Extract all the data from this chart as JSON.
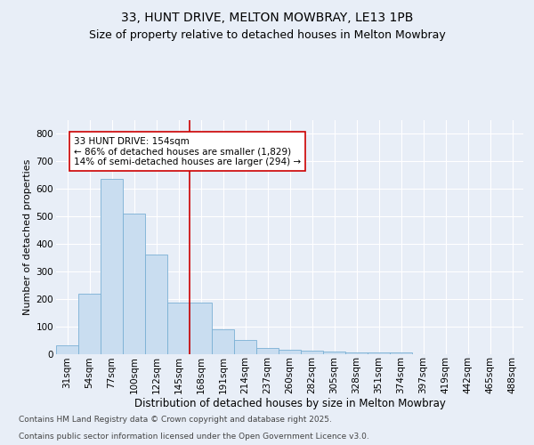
{
  "title1": "33, HUNT DRIVE, MELTON MOWBRAY, LE13 1PB",
  "title2": "Size of property relative to detached houses in Melton Mowbray",
  "xlabel": "Distribution of detached houses by size in Melton Mowbray",
  "ylabel": "Number of detached properties",
  "categories": [
    "31sqm",
    "54sqm",
    "77sqm",
    "100sqm",
    "122sqm",
    "145sqm",
    "168sqm",
    "191sqm",
    "214sqm",
    "237sqm",
    "260sqm",
    "282sqm",
    "305sqm",
    "328sqm",
    "351sqm",
    "374sqm",
    "397sqm",
    "419sqm",
    "442sqm",
    "465sqm",
    "488sqm"
  ],
  "values": [
    30,
    220,
    635,
    510,
    360,
    185,
    185,
    90,
    50,
    20,
    15,
    10,
    7,
    5,
    5,
    5,
    0,
    0,
    0,
    0,
    0
  ],
  "bar_color": "#c9ddf0",
  "bar_edge_color": "#7ab0d4",
  "vline_color": "#cc0000",
  "annotation_text": "33 HUNT DRIVE: 154sqm\n← 86% of detached houses are smaller (1,829)\n14% of semi-detached houses are larger (294) →",
  "annotation_box_color": "#ffffff",
  "annotation_box_edge": "#cc0000",
  "ylim": [
    0,
    850
  ],
  "yticks": [
    0,
    100,
    200,
    300,
    400,
    500,
    600,
    700,
    800
  ],
  "background_color": "#e8eef7",
  "plot_bg_color": "#e8eef7",
  "grid_color": "#ffffff",
  "footer1": "Contains HM Land Registry data © Crown copyright and database right 2025.",
  "footer2": "Contains public sector information licensed under the Open Government Licence v3.0.",
  "title1_fontsize": 10,
  "title2_fontsize": 9,
  "xlabel_fontsize": 8.5,
  "ylabel_fontsize": 8,
  "tick_fontsize": 7.5,
  "annotation_fontsize": 7.5,
  "footer_fontsize": 6.5,
  "vline_pos": 5.5
}
